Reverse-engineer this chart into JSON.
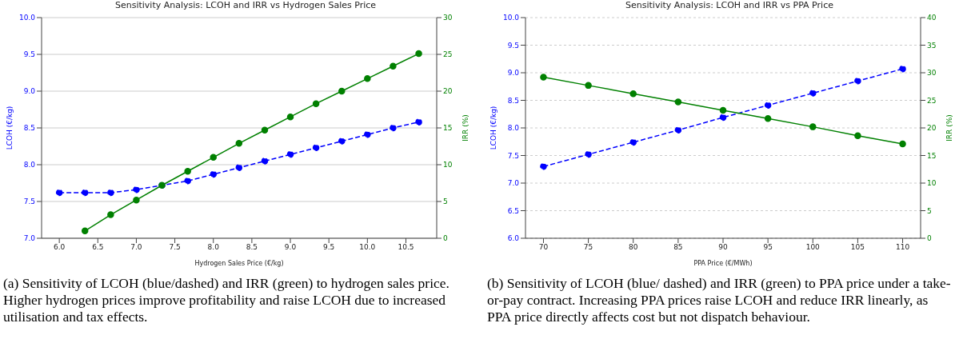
{
  "chart_data": [
    {
      "type": "line",
      "title": "Sensitivity Analysis: LCOH and IRR vs Hydrogen Sales Price",
      "xlabel": "Hydrogen Sales Price (€/kg)",
      "ylabel": "LCOH (€/kg)",
      "y2label": "IRR (%)",
      "x": [
        6.0,
        6.333,
        6.667,
        7.0,
        7.333,
        7.667,
        8.0,
        8.333,
        8.667,
        9.0,
        9.333,
        9.667,
        10.0,
        10.333,
        10.667
      ],
      "series": [
        {
          "color": "#0000ff",
          "line_style": "dashed",
          "values": [
            7.62,
            7.62,
            7.62,
            7.66,
            7.72,
            7.78,
            7.87,
            7.96,
            8.05,
            8.14,
            8.23,
            8.32,
            8.41,
            8.5,
            8.58
          ]
        },
        {
          "color": "#008000",
          "line_style": "solid",
          "axis": "y2",
          "values": [
            null,
            1.0,
            3.2,
            5.2,
            7.2,
            9.1,
            11.0,
            12.9,
            14.7,
            16.5,
            18.3,
            20.0,
            21.7,
            23.4,
            25.1
          ]
        }
      ],
      "xlim": [
        5.77,
        10.9
      ],
      "xticks": [
        {
          "value": 6,
          "label": "6.0"
        },
        6.5,
        {
          "value": 7,
          "label": "7.0"
        },
        7.5,
        {
          "value": 8,
          "label": "8.0"
        },
        8.5,
        {
          "value": 9,
          "label": "9.0"
        },
        9.5,
        {
          "value": 10,
          "label": "10.0"
        },
        10.5
      ],
      "ylim": [
        7,
        10
      ],
      "yticks": [
        {
          "value": 7,
          "label": "7.0"
        },
        7.5,
        {
          "value": 8,
          "label": "8.0"
        },
        8.5,
        {
          "value": 9,
          "label": "9.0"
        },
        9.5,
        {
          "value": 10,
          "label": "10.0"
        }
      ],
      "y2lim": [
        0,
        30
      ],
      "y2ticks": [
        0,
        5,
        10,
        15,
        20,
        25,
        30
      ],
      "grid": "y",
      "marker": "circle",
      "legend": false,
      "annotations": [
        "(a) Sensitivity of LCOH (blue/dashed) and IRR (green) to hydrogen sales price. Higher hydrogen prices improve profitability and raise LCOH due to increased utilisation and tax effects."
      ]
    },
    {
      "type": "line",
      "title": "Sensitivity Analysis: LCOH and IRR vs PPA Price",
      "xlabel": "PPA Price (€/MWh)",
      "ylabel": "LCOH (€/kg)",
      "y2label": "IRR (%)",
      "x": [
        70,
        75,
        80,
        85,
        90,
        95,
        100,
        105,
        110
      ],
      "series": [
        {
          "color": "#0000ff",
          "line_style": "dashed",
          "values": [
            7.3,
            7.52,
            7.74,
            7.96,
            8.19,
            8.41,
            8.63,
            8.85,
            9.07
          ]
        },
        {
          "color": "#008000",
          "line_style": "solid",
          "axis": "y2",
          "values": [
            29.2,
            27.7,
            26.2,
            24.7,
            23.2,
            21.7,
            20.2,
            18.6,
            17.1
          ]
        }
      ],
      "xlim": [
        68,
        112
      ],
      "xticks": [
        70,
        75,
        80,
        85,
        90,
        95,
        100,
        105,
        110
      ],
      "ylim": [
        6,
        10
      ],
      "yticks": [
        {
          "value": 6,
          "label": "6.0"
        },
        6.5,
        {
          "value": 7,
          "label": "7.0"
        },
        7.5,
        {
          "value": 8,
          "label": "8.0"
        },
        8.5,
        {
          "value": 9,
          "label": "9.0"
        },
        9.5,
        {
          "value": 10,
          "label": "10.0"
        }
      ],
      "y2lim": [
        0,
        40
      ],
      "y2ticks": [
        0,
        5,
        10,
        15,
        20,
        25,
        30,
        35,
        40
      ],
      "grid": "y",
      "marker": "circle",
      "legend": false,
      "annotations": [
        "(b) Sensitivity of LCOH (blue/ dashed) and IRR (green) to PPA price under a take-or-pay contract.  Increasing PPA prices raise LCOH and reduce IRR linearly, as PPA price directly affects cost but not dispatch behaviour."
      ]
    }
  ]
}
